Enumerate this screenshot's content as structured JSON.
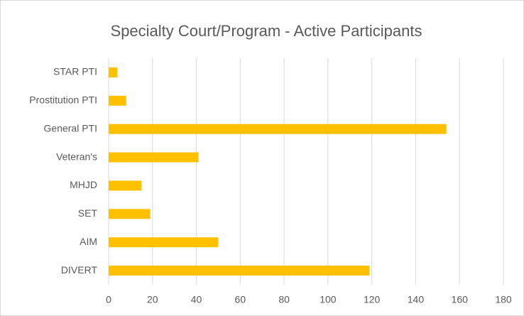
{
  "chart_data": {
    "type": "bar",
    "orientation": "horizontal",
    "title": "Specialty Court/Program - Active Participants",
    "categories": [
      "STAR PTI",
      "Prostitution PTI",
      "General PTI",
      "Veteran's",
      "MHJD",
      "SET",
      "AIM",
      "DIVERT"
    ],
    "values": [
      4,
      8,
      154,
      41,
      15,
      19,
      50,
      119
    ],
    "color": "#ffc000",
    "xlim": [
      0,
      180
    ],
    "xticks": [
      0,
      20,
      40,
      60,
      80,
      100,
      120,
      140,
      160,
      180
    ],
    "grid": true
  }
}
